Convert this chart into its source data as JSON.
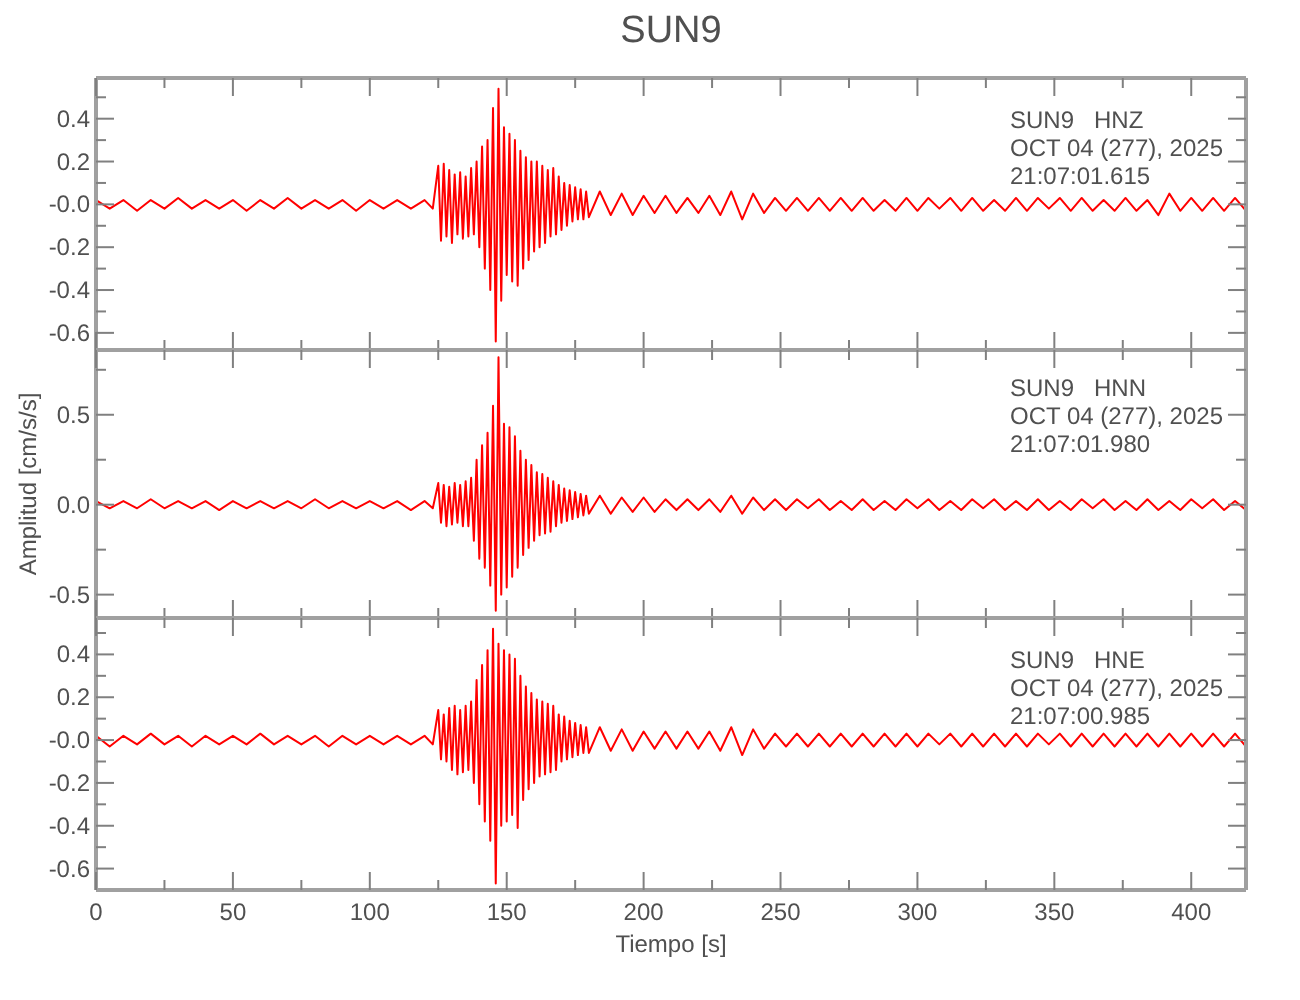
{
  "chart_data": [
    {
      "type": "line",
      "title": "SUN9",
      "annotations": [
        "SUN9   HNZ",
        "OCT 04 (277), 2025",
        "21:07:01.615"
      ],
      "tick_labels": "y",
      "color": "#ff0000",
      "xlim": [
        0,
        420
      ],
      "xticks": [
        0,
        {
          "value": 25,
          "label": null
        },
        50,
        {
          "value": 75,
          "label": null
        },
        100,
        {
          "value": 125,
          "label": null
        },
        150,
        {
          "value": 175,
          "label": null
        },
        200,
        {
          "value": 225,
          "label": null
        },
        250,
        {
          "value": 275,
          "label": null
        },
        300,
        {
          "value": 325,
          "label": null
        },
        350,
        {
          "value": 375,
          "label": null
        },
        400
      ],
      "ylim": [
        -0.68,
        0.59
      ],
      "yticks": [
        -0.6,
        {
          "value": -0.5,
          "label": null
        },
        -0.4,
        {
          "value": -0.3,
          "label": null
        },
        -0.2,
        {
          "value": -0.1,
          "label": null
        },
        {
          "value": 0,
          "label": "-0.0"
        },
        {
          "value": 0.1,
          "label": null
        },
        0.2,
        {
          "value": 0.3,
          "label": null
        },
        0.4,
        {
          "value": 0.5,
          "label": null
        }
      ],
      "x": [
        0,
        5,
        10,
        15,
        20,
        25,
        30,
        35,
        40,
        45,
        50,
        55,
        60,
        65,
        70,
        75,
        80,
        85,
        90,
        95,
        100,
        105,
        110,
        115,
        120,
        123,
        125,
        126,
        127,
        128,
        129,
        130,
        131,
        132,
        133,
        134,
        135,
        136,
        137,
        138,
        139,
        140,
        141,
        142,
        143,
        144,
        145,
        146,
        147,
        148,
        149,
        150,
        151,
        152,
        153,
        154,
        155,
        156,
        157,
        158,
        159,
        160,
        161,
        162,
        163,
        164,
        165,
        166,
        167,
        168,
        169,
        170,
        171,
        172,
        173,
        174,
        175,
        176,
        177,
        178,
        179,
        180,
        184,
        188,
        192,
        196,
        200,
        204,
        208,
        212,
        216,
        220,
        224,
        228,
        232,
        236,
        240,
        244,
        248,
        252,
        256,
        260,
        264,
        268,
        272,
        276,
        280,
        284,
        288,
        292,
        296,
        300,
        304,
        308,
        312,
        316,
        320,
        324,
        328,
        332,
        336,
        340,
        344,
        348,
        352,
        356,
        360,
        364,
        368,
        372,
        376,
        380,
        384,
        388,
        392,
        396,
        400,
        404,
        408,
        412,
        416,
        420
      ],
      "values": [
        0.02,
        -0.02,
        0.02,
        -0.03,
        0.02,
        -0.02,
        0.03,
        -0.02,
        0.02,
        -0.02,
        0.02,
        -0.03,
        0.02,
        -0.02,
        0.03,
        -0.02,
        0.02,
        -0.02,
        0.02,
        -0.03,
        0.02,
        -0.02,
        0.02,
        -0.02,
        0.02,
        -0.02,
        0.18,
        -0.17,
        0.19,
        -0.15,
        0.16,
        -0.18,
        0.14,
        -0.14,
        0.15,
        -0.16,
        0.13,
        -0.15,
        0.17,
        -0.14,
        0.2,
        -0.2,
        0.27,
        -0.3,
        0.3,
        -0.4,
        0.45,
        -0.64,
        0.54,
        -0.45,
        0.36,
        -0.33,
        0.33,
        -0.36,
        0.3,
        -0.38,
        0.25,
        -0.3,
        0.22,
        -0.26,
        0.2,
        -0.22,
        0.2,
        -0.2,
        0.18,
        -0.18,
        0.16,
        -0.15,
        0.17,
        -0.14,
        0.13,
        -0.12,
        0.1,
        -0.1,
        0.09,
        -0.08,
        0.08,
        -0.07,
        0.07,
        -0.07,
        0.06,
        -0.06,
        0.06,
        -0.05,
        0.05,
        -0.05,
        0.04,
        -0.04,
        0.04,
        -0.04,
        0.03,
        -0.04,
        0.04,
        -0.05,
        0.06,
        -0.07,
        0.05,
        -0.04,
        0.03,
        -0.03,
        0.03,
        -0.03,
        0.03,
        -0.03,
        0.03,
        -0.03,
        0.03,
        -0.03,
        0.02,
        -0.03,
        0.03,
        -0.03,
        0.03,
        -0.02,
        0.03,
        -0.03,
        0.03,
        -0.03,
        0.02,
        -0.03,
        0.03,
        -0.03,
        0.03,
        -0.02,
        0.03,
        -0.03,
        0.03,
        -0.03,
        0.02,
        -0.03,
        0.03,
        -0.03,
        0.02,
        -0.05,
        0.05,
        -0.03,
        0.03,
        -0.03,
        0.03,
        -0.03,
        0.03,
        -0.03
      ]
    },
    {
      "type": "line",
      "ylabel": "Amplitud [cm/s/s]",
      "annotations": [
        "SUN9   HNN",
        "OCT 04 (277), 2025",
        "21:07:01.980"
      ],
      "tick_labels": "y",
      "color": "#ff0000",
      "xlim": [
        0,
        420
      ],
      "xticks": [
        0,
        {
          "value": 25,
          "label": null
        },
        50,
        {
          "value": 75,
          "label": null
        },
        100,
        {
          "value": 125,
          "label": null
        },
        150,
        {
          "value": 175,
          "label": null
        },
        200,
        {
          "value": 225,
          "label": null
        },
        250,
        {
          "value": 275,
          "label": null
        },
        300,
        {
          "value": 325,
          "label": null
        },
        350,
        {
          "value": 375,
          "label": null
        },
        400
      ],
      "ylim": [
        -0.63,
        0.86
      ],
      "yticks": [
        -0.5,
        {
          "value": -0.25,
          "label": null
        },
        {
          "value": 0,
          "label": "0.0"
        },
        {
          "value": 0.25,
          "label": null
        },
        0.5,
        {
          "value": 0.75,
          "label": null
        }
      ],
      "x": [
        0,
        5,
        10,
        15,
        20,
        25,
        30,
        35,
        40,
        45,
        50,
        55,
        60,
        65,
        70,
        75,
        80,
        85,
        90,
        95,
        100,
        105,
        110,
        115,
        120,
        123,
        125,
        126,
        127,
        128,
        129,
        130,
        131,
        132,
        133,
        134,
        135,
        136,
        137,
        138,
        139,
        140,
        141,
        142,
        143,
        144,
        145,
        146,
        147,
        148,
        149,
        150,
        151,
        152,
        153,
        154,
        155,
        156,
        157,
        158,
        159,
        160,
        161,
        162,
        163,
        164,
        165,
        166,
        167,
        168,
        169,
        170,
        171,
        172,
        173,
        174,
        175,
        176,
        177,
        178,
        179,
        180,
        184,
        188,
        192,
        196,
        200,
        204,
        208,
        212,
        216,
        220,
        224,
        228,
        232,
        236,
        240,
        244,
        248,
        252,
        256,
        260,
        264,
        268,
        272,
        276,
        280,
        284,
        288,
        292,
        296,
        300,
        304,
        308,
        312,
        316,
        320,
        324,
        328,
        332,
        336,
        340,
        344,
        348,
        352,
        356,
        360,
        364,
        368,
        372,
        376,
        380,
        384,
        388,
        392,
        396,
        400,
        404,
        408,
        412,
        416,
        420
      ],
      "values": [
        0.02,
        -0.02,
        0.02,
        -0.02,
        0.03,
        -0.02,
        0.02,
        -0.02,
        0.02,
        -0.03,
        0.02,
        -0.02,
        0.02,
        -0.02,
        0.02,
        -0.02,
        0.03,
        -0.02,
        0.02,
        -0.02,
        0.02,
        -0.02,
        0.02,
        -0.03,
        0.02,
        -0.02,
        0.12,
        -0.1,
        0.11,
        -0.12,
        0.1,
        -0.11,
        0.12,
        -0.1,
        0.11,
        -0.12,
        0.13,
        -0.12,
        0.15,
        -0.2,
        0.25,
        -0.3,
        0.33,
        -0.35,
        0.4,
        -0.45,
        0.55,
        -0.59,
        0.82,
        -0.5,
        0.45,
        -0.46,
        0.43,
        -0.4,
        0.38,
        -0.35,
        0.3,
        -0.28,
        0.25,
        -0.24,
        0.22,
        -0.2,
        0.18,
        -0.17,
        0.17,
        -0.16,
        0.15,
        -0.15,
        0.13,
        -0.12,
        0.11,
        -0.1,
        0.09,
        -0.09,
        0.08,
        -0.08,
        0.07,
        -0.07,
        0.06,
        -0.06,
        0.05,
        -0.05,
        0.05,
        -0.05,
        0.04,
        -0.04,
        0.04,
        -0.04,
        0.03,
        -0.03,
        0.03,
        -0.03,
        0.03,
        -0.04,
        0.05,
        -0.05,
        0.04,
        -0.03,
        0.03,
        -0.03,
        0.03,
        -0.02,
        0.03,
        -0.03,
        0.02,
        -0.03,
        0.03,
        -0.03,
        0.02,
        -0.03,
        0.03,
        -0.02,
        0.03,
        -0.03,
        0.02,
        -0.03,
        0.03,
        -0.02,
        0.03,
        -0.03,
        0.02,
        -0.03,
        0.03,
        -0.03,
        0.02,
        -0.03,
        0.03,
        -0.02,
        0.03,
        -0.03,
        0.02,
        -0.03,
        0.03,
        -0.03,
        0.02,
        -0.03,
        0.03,
        -0.02,
        0.03,
        -0.03,
        0.02,
        -0.03
      ]
    },
    {
      "type": "line",
      "xlabel": "Tiempo [s]",
      "annotations": [
        "SUN9   HNE",
        "OCT 04 (277), 2025",
        "21:07:00.985"
      ],
      "color": "#ff0000",
      "xlim": [
        0,
        420
      ],
      "xticks": [
        0,
        {
          "value": 25,
          "label": null
        },
        50,
        {
          "value": 75,
          "label": null
        },
        100,
        {
          "value": 125,
          "label": null
        },
        150,
        {
          "value": 175,
          "label": null
        },
        200,
        {
          "value": 225,
          "label": null
        },
        250,
        {
          "value": 275,
          "label": null
        },
        300,
        {
          "value": 325,
          "label": null
        },
        350,
        {
          "value": 375,
          "label": null
        },
        400
      ],
      "ylim": [
        -0.7,
        0.57
      ],
      "yticks": [
        -0.6,
        {
          "value": -0.5,
          "label": null
        },
        -0.4,
        {
          "value": -0.3,
          "label": null
        },
        -0.2,
        {
          "value": -0.1,
          "label": null
        },
        {
          "value": 0,
          "label": "-0.0"
        },
        {
          "value": 0.1,
          "label": null
        },
        0.2,
        {
          "value": 0.3,
          "label": null
        },
        0.4,
        {
          "value": 0.5,
          "label": null
        }
      ],
      "x": [
        0,
        5,
        10,
        15,
        20,
        25,
        30,
        35,
        40,
        45,
        50,
        55,
        60,
        65,
        70,
        75,
        80,
        85,
        90,
        95,
        100,
        105,
        110,
        115,
        120,
        123,
        125,
        126,
        127,
        128,
        129,
        130,
        131,
        132,
        133,
        134,
        135,
        136,
        137,
        138,
        139,
        140,
        141,
        142,
        143,
        144,
        145,
        146,
        147,
        148,
        149,
        150,
        151,
        152,
        153,
        154,
        155,
        156,
        157,
        158,
        159,
        160,
        161,
        162,
        163,
        164,
        165,
        166,
        167,
        168,
        169,
        170,
        171,
        172,
        173,
        174,
        175,
        176,
        177,
        178,
        179,
        180,
        184,
        188,
        192,
        196,
        200,
        204,
        208,
        212,
        216,
        220,
        224,
        228,
        232,
        236,
        240,
        244,
        248,
        252,
        256,
        260,
        264,
        268,
        272,
        276,
        280,
        284,
        288,
        292,
        296,
        300,
        304,
        308,
        312,
        316,
        320,
        324,
        328,
        332,
        336,
        340,
        344,
        348,
        352,
        356,
        360,
        364,
        368,
        372,
        376,
        380,
        384,
        388,
        392,
        396,
        400,
        404,
        408,
        412,
        416,
        420
      ],
      "values": [
        0.02,
        -0.03,
        0.02,
        -0.02,
        0.03,
        -0.02,
        0.02,
        -0.03,
        0.02,
        -0.02,
        0.02,
        -0.02,
        0.03,
        -0.02,
        0.02,
        -0.02,
        0.02,
        -0.03,
        0.02,
        -0.02,
        0.02,
        -0.02,
        0.02,
        -0.02,
        0.02,
        -0.02,
        0.14,
        -0.09,
        0.12,
        -0.1,
        0.15,
        -0.14,
        0.16,
        -0.16,
        0.14,
        -0.15,
        0.16,
        -0.14,
        0.18,
        -0.2,
        0.28,
        -0.3,
        0.35,
        -0.38,
        0.42,
        -0.47,
        0.52,
        -0.67,
        0.45,
        -0.4,
        0.42,
        -0.38,
        0.4,
        -0.35,
        0.38,
        -0.41,
        0.3,
        -0.28,
        0.25,
        -0.23,
        0.22,
        -0.2,
        0.19,
        -0.17,
        0.18,
        -0.16,
        0.17,
        -0.15,
        0.16,
        -0.14,
        0.12,
        -0.1,
        0.11,
        -0.09,
        0.09,
        -0.08,
        0.08,
        -0.07,
        0.07,
        -0.06,
        0.06,
        -0.06,
        0.06,
        -0.05,
        0.05,
        -0.05,
        0.04,
        -0.04,
        0.04,
        -0.04,
        0.04,
        -0.04,
        0.04,
        -0.05,
        0.06,
        -0.07,
        0.05,
        -0.04,
        0.03,
        -0.03,
        0.03,
        -0.03,
        0.03,
        -0.03,
        0.03,
        -0.03,
        0.03,
        -0.03,
        0.03,
        -0.03,
        0.03,
        -0.03,
        0.03,
        -0.02,
        0.03,
        -0.03,
        0.03,
        -0.03,
        0.03,
        -0.03,
        0.03,
        -0.03,
        0.03,
        -0.02,
        0.03,
        -0.03,
        0.03,
        -0.03,
        0.03,
        -0.03,
        0.03,
        -0.03,
        0.03,
        -0.03,
        0.03,
        -0.03,
        0.03,
        -0.03,
        0.03,
        -0.03,
        0.03,
        -0.03
      ]
    }
  ]
}
